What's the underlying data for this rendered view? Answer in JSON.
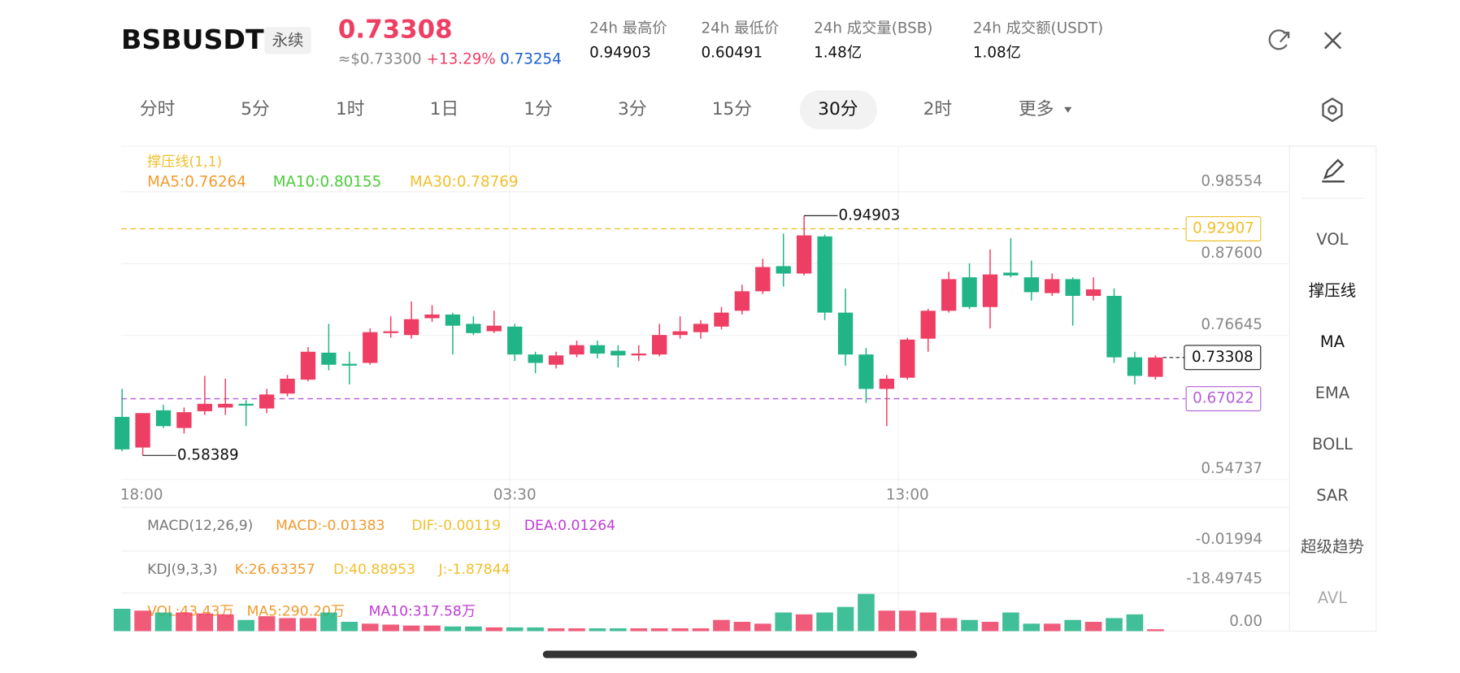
{
  "header": {
    "symbol": "BSBUSDT",
    "tag": "永续",
    "price": "0.73308",
    "usd": "≈$0.73300",
    "change": "+13.29%",
    "mark": "0.73254",
    "stats": [
      {
        "label": "24h 最高价",
        "value": "0.94903"
      },
      {
        "label": "24h 最低价",
        "value": "0.60491"
      },
      {
        "label": "24h 成交量(BSB)",
        "value": "1.48亿"
      },
      {
        "label": "24h 成交额(USDT)",
        "value": "1.08亿"
      }
    ]
  },
  "tabs": {
    "items": [
      "分时",
      "5分",
      "1时",
      "1日",
      "1分",
      "3分",
      "15分",
      "30分",
      "2时",
      "更多"
    ],
    "active": 7
  },
  "side_menu": {
    "items": [
      "VOL",
      "撑压线",
      "MA",
      "EMA",
      "BOLL",
      "SAR",
      "超级趋势",
      "AVL"
    ],
    "active": [
      1,
      2
    ]
  },
  "chart_data": {
    "type": "candlestick",
    "legend": {
      "title": "撑压线(1,1)",
      "items": [
        {
          "text": "MA5:0.76264",
          "color": "#f29a2e"
        },
        {
          "text": "MA10:0.80155",
          "color": "#4ccc3a"
        },
        {
          "text": "MA30:0.78769",
          "color": "#f0c02c"
        }
      ]
    },
    "up_color": "#ee3e63",
    "down_color": "#20b486",
    "categories": [
      "18:00",
      null,
      null,
      null,
      null,
      null,
      null,
      null,
      null,
      null,
      null,
      null,
      null,
      null,
      null,
      null,
      null,
      null,
      null,
      "03:30",
      null,
      null,
      null,
      null,
      null,
      null,
      null,
      null,
      null,
      null,
      null,
      null,
      null,
      null,
      null,
      null,
      null,
      null,
      "13:00",
      null,
      null,
      null,
      null,
      null,
      null,
      null,
      null,
      null,
      null,
      null,
      null
    ],
    "open": [
      0.6426,
      0.5959,
      0.6526,
      0.6256,
      0.6512,
      0.6568,
      0.6625,
      0.6554,
      0.6781,
      0.6993,
      0.7404,
      0.7234,
      0.7248,
      0.7702,
      0.7673,
      0.7929,
      0.7985,
      0.7843,
      0.773,
      0.7801,
      0.7376,
      0.722,
      0.7376,
      0.7518,
      0.7433,
      0.7362,
      0.7376,
      0.7673,
      0.7716,
      0.7801,
      0.8042,
      0.8339,
      0.8722,
      0.8609,
      0.9175,
      0.8014,
      0.7376,
      0.6852,
      0.7022,
      0.7617,
      0.8042,
      0.8552,
      0.8099,
      0.8623,
      0.8552,
      0.8311,
      0.8524,
      0.8269,
      0.8269,
      0.7333,
      0.7036
    ],
    "high": [
      0.6852,
      0.6483,
      0.6611,
      0.6568,
      0.705,
      0.7007,
      0.6682,
      0.6852,
      0.7064,
      0.7489,
      0.7843,
      0.7418,
      0.7773,
      0.7957,
      0.8184,
      0.8127,
      0.8014,
      0.7957,
      0.8042,
      0.7843,
      0.7418,
      0.7418,
      0.7588,
      0.7588,
      0.7518,
      0.7518,
      0.7843,
      0.7957,
      0.79,
      0.8099,
      0.8439,
      0.8835,
      0.9218,
      0.94903,
      0.9204,
      0.8382,
      0.7475,
      0.7064,
      0.7631,
      0.807,
      0.8637,
      0.8765,
      0.8977,
      0.9147,
      0.8807,
      0.8609,
      0.8552,
      0.8552,
      0.8382,
      0.7418,
      0.7362
    ],
    "low": [
      0.5902,
      0.58389,
      0.6256,
      0.6171,
      0.6455,
      0.6455,
      0.6285,
      0.6483,
      0.6738,
      0.6965,
      0.7135,
      0.6922,
      0.722,
      0.7631,
      0.7617,
      0.7872,
      0.7376,
      0.7673,
      0.7702,
      0.7277,
      0.7092,
      0.7163,
      0.7333,
      0.7319,
      0.7178,
      0.7277,
      0.7348,
      0.7617,
      0.7617,
      0.7758,
      0.7985,
      0.8297,
      0.841,
      0.858,
      0.79,
      0.7206,
      0.6639,
      0.6285,
      0.6993,
      0.7418,
      0.8014,
      0.807,
      0.7773,
      0.8552,
      0.8198,
      0.8269,
      0.7815,
      0.8198,
      0.7248,
      0.6922,
      0.6993
    ],
    "close": [
      0.5931,
      0.6483,
      0.6285,
      0.6497,
      0.6625,
      0.6625,
      0.6597,
      0.6767,
      0.7007,
      0.7418,
      0.722,
      0.7206,
      0.7716,
      0.773,
      0.7914,
      0.7985,
      0.7815,
      0.7702,
      0.7815,
      0.7376,
      0.7248,
      0.7362,
      0.7518,
      0.739,
      0.7362,
      0.739,
      0.7673,
      0.773,
      0.7843,
      0.8014,
      0.8339,
      0.8708,
      0.8609,
      0.919,
      0.8014,
      0.7376,
      0.6852,
      0.7007,
      0.7603,
      0.8042,
      0.8524,
      0.8099,
      0.8595,
      0.858,
      0.8325,
      0.8524,
      0.8269,
      0.8368,
      0.7333,
      0.705,
      0.73308
    ],
    "ylim": [
      0.54737,
      1.0578
    ],
    "yticks": [
      0.98554,
      {
        "value": 0.876,
        "label": "0.87600"
      },
      0.76645,
      0.54737
    ],
    "grid": true,
    "resistance": 0.92907,
    "resistance_color": "#f0c02c",
    "support": 0.67022,
    "support_color": "#b35fd6",
    "volume": {
      "values": [
        480,
        440,
        400,
        400,
        380,
        360,
        240,
        320,
        280,
        280,
        400,
        200,
        160,
        140,
        120,
        120,
        100,
        100,
        80,
        80,
        80,
        60,
        60,
        60,
        60,
        60,
        60,
        60,
        60,
        240,
        200,
        160,
        400,
        360,
        400,
        520,
        800,
        440,
        440,
        400,
        280,
        240,
        200,
        400,
        160,
        160,
        240,
        200,
        280,
        360,
        40
      ],
      "ylim": [
        0,
        820
      ],
      "yticks": [
        {
          "value": 0,
          "label": "0.00"
        }
      ]
    },
    "panels": [
      {
        "title": "MACD(12,26,9)",
        "items": [
          {
            "text": "MACD:-0.01383",
            "color": "#f29a2e"
          },
          {
            "text": "DIF:-0.00119",
            "color": "#f0c02c"
          },
          {
            "text": "DEA:0.01264",
            "color": "#c03ad6"
          }
        ],
        "axis_label": "-0.01994"
      },
      {
        "title": "KDJ(9,3,3)",
        "items": [
          {
            "text": "K:26.63357",
            "color": "#f29a2e"
          },
          {
            "text": "D:40.88953",
            "color": "#f0c02c"
          },
          {
            "text": "J:-1.87844",
            "color": "#f0c02c"
          }
        ],
        "axis_label": "-18.49745"
      },
      {
        "title": "VOL:43.43万",
        "items": [
          {
            "text": "MA5:290.20万",
            "color": "#f29a2e"
          },
          {
            "text": "MA10:317.58万",
            "color": "#c03ad6"
          }
        ]
      }
    ]
  }
}
